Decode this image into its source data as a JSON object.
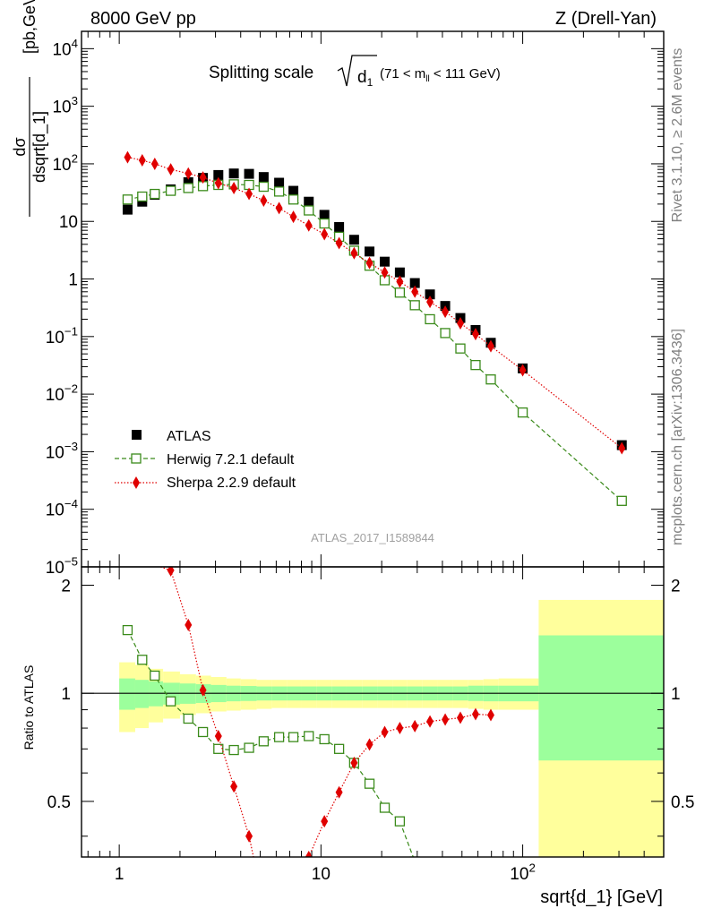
{
  "header": {
    "left": "8000 GeV pp",
    "right": "Z (Drell-Yan)"
  },
  "side_labels": {
    "rivet": "Rivet 3.1.10, ≥ 2.6M events",
    "source": "mcplots.cern.ch [arXiv:1306.3436]"
  },
  "analysis_id": "ATLAS_2017_I1589844",
  "colors": {
    "atlas": "#000000",
    "herwig": "#3a8a1a",
    "sherpa": "#e00000",
    "band_inner": "#9cff9c",
    "band_outer": "#ffff9c"
  },
  "chart_data": [
    {
      "type": "scatter",
      "title": "Splitting scale √d₁ (71 < mₗₗ < 111 GeV)",
      "title_parts": {
        "main": "Splitting scale",
        "var": "d",
        "sub": "1",
        "cut_pre": "(71 < m",
        "cut_sub": "ll",
        "cut_post": " < 111 GeV)"
      },
      "xlabel": "sqrt{d_1} [GeV]",
      "ylabel": "dσ / dsqrt[d_1] [pb,GeV⁻¹]",
      "ylabel_parts": {
        "num": "dσ",
        "den": "dsqrt[d_1]",
        "units": "[pb,GeV",
        "exp": "-1",
        "close": "]"
      },
      "xscale": "log",
      "yscale": "log",
      "xlim": [
        0.65,
        500
      ],
      "ylim": [
        1e-05,
        20000
      ],
      "y_tick_labels": [
        {
          "v": 10000.0,
          "b": "10",
          "e": "4"
        },
        {
          "v": 1000.0,
          "b": "10",
          "e": "3"
        },
        {
          "v": 100.0,
          "b": "10",
          "e": "2"
        },
        {
          "v": 10,
          "b": "10",
          "e": ""
        },
        {
          "v": 1,
          "b": "1",
          "e": ""
        },
        {
          "v": 0.1,
          "b": "10",
          "e": "−1"
        },
        {
          "v": 0.01,
          "b": "10",
          "e": "−2"
        },
        {
          "v": 0.001,
          "b": "10",
          "e": "−3"
        },
        {
          "v": 0.0001,
          "b": "10",
          "e": "−4"
        },
        {
          "v": 1e-05,
          "b": "10",
          "e": "−5"
        }
      ],
      "legend_position": "bottom-left",
      "series": [
        {
          "name": "ATLAS",
          "marker": "square-filled",
          "x": [
            1.1,
            1.3,
            1.5,
            1.8,
            2.2,
            2.6,
            3.1,
            3.7,
            4.4,
            5.2,
            6.2,
            7.3,
            8.7,
            10.4,
            12.3,
            14.6,
            17.4,
            20.7,
            24.6,
            29.2,
            34.7,
            41.3,
            49.1,
            58.4,
            69.5,
            100,
            310
          ],
          "y": [
            16,
            22,
            29,
            36,
            48,
            57,
            64,
            68,
            67,
            59,
            47,
            34,
            22,
            13,
            8,
            4.8,
            3,
            2,
            1.3,
            0.85,
            0.54,
            0.34,
            0.21,
            0.13,
            0.078,
            0.028,
            0.0013
          ]
        },
        {
          "name": "Herwig 7.2.1 default",
          "marker": "square-open",
          "line": "dashed",
          "x": [
            1.1,
            1.3,
            1.5,
            1.8,
            2.2,
            2.6,
            3.1,
            3.7,
            4.4,
            5.2,
            6.2,
            7.3,
            8.7,
            10.4,
            12.3,
            14.6,
            17.4,
            20.7,
            24.6,
            29.2,
            34.7,
            41.3,
            49.1,
            58.4,
            69.5,
            100,
            310
          ],
          "y": [
            24,
            27,
            30,
            34,
            38,
            41,
            43,
            44,
            43,
            40,
            33,
            24,
            15.5,
            9.2,
            5.4,
            3.1,
            1.7,
            0.95,
            0.58,
            0.35,
            0.2,
            0.115,
            0.062,
            0.032,
            0.018,
            0.0048,
            0.00014
          ]
        },
        {
          "name": "Sherpa 2.2.9 default",
          "marker": "diamond-filled",
          "line": "dotted",
          "x": [
            1.1,
            1.3,
            1.5,
            1.8,
            2.2,
            2.6,
            3.1,
            3.7,
            4.4,
            5.2,
            6.2,
            7.3,
            8.7,
            10.4,
            12.3,
            14.6,
            17.4,
            20.7,
            24.6,
            29.2,
            34.7,
            41.3,
            49.1,
            58.4,
            69.5,
            100,
            310
          ],
          "y": [
            130,
            115,
            100,
            80,
            68,
            58,
            46,
            38,
            30,
            23,
            17,
            12,
            8.5,
            6,
            4.2,
            2.8,
            1.9,
            1.3,
            0.9,
            0.6,
            0.4,
            0.27,
            0.17,
            0.11,
            0.068,
            0.026,
            0.00115
          ]
        }
      ]
    },
    {
      "type": "scatter",
      "xlabel": "sqrt{d_1} [GeV]",
      "ylabel": "Ratio to ATLAS",
      "xscale": "log",
      "xlim": [
        0.65,
        500
      ],
      "ylim": [
        0.35,
        2.25
      ],
      "y_ticks": [
        0.5,
        1,
        2
      ],
      "y_tick_labels_left": [
        "0.5",
        "1",
        "2"
      ],
      "y_tick_labels_right": [
        "0.5",
        "1",
        "2"
      ],
      "x_tick_labels": [
        {
          "v": 1,
          "b": "1",
          "e": ""
        },
        {
          "v": 10,
          "b": "10",
          "e": ""
        },
        {
          "v": 100,
          "b": "10",
          "e": "2"
        }
      ],
      "reference_line": 1,
      "bands": [
        {
          "x_lo": 1.0,
          "x_hi": 1.2,
          "inner": [
            0.9,
            1.1
          ],
          "outer": [
            0.78,
            1.22
          ]
        },
        {
          "x_lo": 1.2,
          "x_hi": 1.4,
          "inner": [
            0.91,
            1.09
          ],
          "outer": [
            0.8,
            1.2
          ]
        },
        {
          "x_lo": 1.4,
          "x_hi": 1.65,
          "inner": [
            0.92,
            1.08
          ],
          "outer": [
            0.83,
            1.17
          ]
        },
        {
          "x_lo": 1.65,
          "x_hi": 2.0,
          "inner": [
            0.93,
            1.07
          ],
          "outer": [
            0.85,
            1.15
          ]
        },
        {
          "x_lo": 2.0,
          "x_hi": 2.4,
          "inner": [
            0.935,
            1.065
          ],
          "outer": [
            0.87,
            1.13
          ]
        },
        {
          "x_lo": 2.4,
          "x_hi": 2.85,
          "inner": [
            0.94,
            1.06
          ],
          "outer": [
            0.88,
            1.12
          ]
        },
        {
          "x_lo": 2.85,
          "x_hi": 3.4,
          "inner": [
            0.945,
            1.055
          ],
          "outer": [
            0.89,
            1.11
          ]
        },
        {
          "x_lo": 3.4,
          "x_hi": 4.0,
          "inner": [
            0.95,
            1.05
          ],
          "outer": [
            0.895,
            1.1
          ]
        },
        {
          "x_lo": 4.0,
          "x_hi": 4.8,
          "inner": [
            0.952,
            1.048
          ],
          "outer": [
            0.9,
            1.095
          ]
        },
        {
          "x_lo": 4.8,
          "x_hi": 5.7,
          "inner": [
            0.955,
            1.045
          ],
          "outer": [
            0.905,
            1.09
          ]
        },
        {
          "x_lo": 5.7,
          "x_hi": 6.8,
          "inner": [
            0.955,
            1.045
          ],
          "outer": [
            0.91,
            1.09
          ]
        },
        {
          "x_lo": 6.8,
          "x_hi": 8.0,
          "inner": [
            0.955,
            1.045
          ],
          "outer": [
            0.91,
            1.09
          ]
        },
        {
          "x_lo": 8.0,
          "x_hi": 9.5,
          "inner": [
            0.955,
            1.045
          ],
          "outer": [
            0.91,
            1.09
          ]
        },
        {
          "x_lo": 9.5,
          "x_hi": 11.3,
          "inner": [
            0.955,
            1.045
          ],
          "outer": [
            0.91,
            1.09
          ]
        },
        {
          "x_lo": 11.3,
          "x_hi": 13.4,
          "inner": [
            0.955,
            1.045
          ],
          "outer": [
            0.91,
            1.09
          ]
        },
        {
          "x_lo": 13.4,
          "x_hi": 16.0,
          "inner": [
            0.955,
            1.045
          ],
          "outer": [
            0.91,
            1.09
          ]
        },
        {
          "x_lo": 16.0,
          "x_hi": 19.0,
          "inner": [
            0.955,
            1.045
          ],
          "outer": [
            0.91,
            1.09
          ]
        },
        {
          "x_lo": 19.0,
          "x_hi": 22.6,
          "inner": [
            0.955,
            1.045
          ],
          "outer": [
            0.91,
            1.09
          ]
        },
        {
          "x_lo": 22.6,
          "x_hi": 26.8,
          "inner": [
            0.955,
            1.045
          ],
          "outer": [
            0.91,
            1.09
          ]
        },
        {
          "x_lo": 26.8,
          "x_hi": 31.9,
          "inner": [
            0.955,
            1.045
          ],
          "outer": [
            0.91,
            1.09
          ]
        },
        {
          "x_lo": 31.9,
          "x_hi": 38.0,
          "inner": [
            0.955,
            1.045
          ],
          "outer": [
            0.91,
            1.09
          ]
        },
        {
          "x_lo": 38.0,
          "x_hi": 45.2,
          "inner": [
            0.955,
            1.045
          ],
          "outer": [
            0.91,
            1.09
          ]
        },
        {
          "x_lo": 45.2,
          "x_hi": 53.7,
          "inner": [
            0.955,
            1.045
          ],
          "outer": [
            0.91,
            1.09
          ]
        },
        {
          "x_lo": 53.7,
          "x_hi": 63.9,
          "inner": [
            0.952,
            1.05
          ],
          "outer": [
            0.905,
            1.09
          ]
        },
        {
          "x_lo": 63.9,
          "x_hi": 76.0,
          "inner": [
            0.95,
            1.05
          ],
          "outer": [
            0.9,
            1.095
          ]
        },
        {
          "x_lo": 76.0,
          "x_hi": 120,
          "inner": [
            0.95,
            1.05
          ],
          "outer": [
            0.9,
            1.1
          ]
        },
        {
          "x_lo": 120,
          "x_hi": 500,
          "inner": [
            0.65,
            1.45
          ],
          "outer": [
            0.35,
            1.82
          ]
        }
      ],
      "series": [
        {
          "name": "Herwig 7.2.1 default",
          "marker": "square-open",
          "line": "dashed",
          "x": [
            1.1,
            1.3,
            1.5,
            1.8,
            2.2,
            2.6,
            3.1,
            3.7,
            4.4,
            5.2,
            6.2,
            7.3,
            8.7,
            10.4,
            12.3,
            14.6,
            17.4,
            20.7,
            24.6,
            29.2
          ],
          "y": [
            1.5,
            1.24,
            1.12,
            0.95,
            0.85,
            0.78,
            0.7,
            0.695,
            0.705,
            0.735,
            0.755,
            0.755,
            0.76,
            0.745,
            0.7,
            0.64,
            0.56,
            0.48,
            0.44,
            0.34
          ]
        },
        {
          "name": "Sherpa 2.2.9 default",
          "marker": "diamond-filled",
          "line": "dotted",
          "x": [
            1.8,
            2.2,
            2.6,
            3.1,
            3.7,
            4.4,
            8.7,
            10.4,
            12.3,
            14.6,
            17.4,
            20.7,
            24.6,
            29.2,
            34.7,
            41.3,
            49.1,
            58.4,
            69.5
          ],
          "y": [
            2.2,
            1.55,
            1.02,
            0.76,
            0.55,
            0.4,
            0.35,
            0.44,
            0.53,
            0.64,
            0.72,
            0.78,
            0.8,
            0.81,
            0.835,
            0.845,
            0.855,
            0.875,
            0.87
          ]
        }
      ]
    }
  ]
}
